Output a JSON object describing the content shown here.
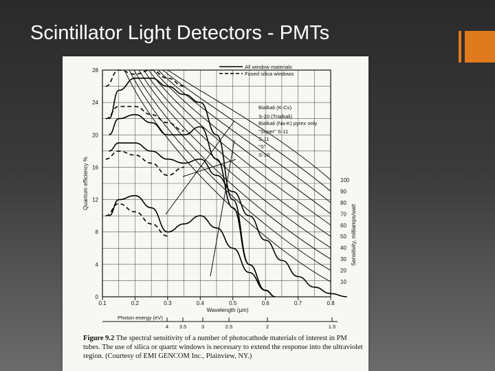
{
  "slide": {
    "title": "Scintillator Light Detectors - PMTs",
    "accent_color": "#e07a1e"
  },
  "chart_data": {
    "type": "line",
    "xlabel": "Wavelength (μm)",
    "ylabel": "Quantum efficiency %",
    "y2label": "Sensitivity, milliamps/watt",
    "xlim": [
      0.1,
      0.8
    ],
    "ylim": [
      0,
      28
    ],
    "grid": true,
    "x_ticks": [
      "0.1",
      "0.2",
      "0.3",
      "0.4",
      "0.5",
      "0.6",
      "0.7",
      "0.8"
    ],
    "y_ticks": [
      "0",
      "4",
      "8",
      "12",
      "16",
      "20",
      "24",
      "28"
    ],
    "sensitivity_labels": [
      "100",
      "90",
      "80",
      "70",
      "60",
      "50",
      "40",
      "30",
      "20",
      "10"
    ],
    "photon_energy_label": "Photon energy (eV)",
    "photon_energy_ticks": [
      "4",
      "3.5",
      "3",
      "2.5",
      "2",
      "1.5"
    ],
    "legend": [
      "All window materials",
      "Fused silica windows",
      "Bialkali (K-Cs)",
      "S-20 (Trialkali)",
      "Bialkali (Na-K) pyrex only",
      "\"Super\" S-11",
      "S-11",
      "\"S\"",
      "S-10"
    ],
    "series": [
      {
        "style": "solid",
        "x": [
          0.12,
          0.15,
          0.2,
          0.25,
          0.3,
          0.35,
          0.4,
          0.45,
          0.5,
          0.55,
          0.6,
          0.63
        ],
        "y": [
          22,
          25.5,
          27,
          27,
          26,
          25,
          24,
          20,
          12,
          4,
          0.8,
          0
        ]
      },
      {
        "style": "solid",
        "x": [
          0.12,
          0.15,
          0.2,
          0.25,
          0.3,
          0.35,
          0.4,
          0.45,
          0.5,
          0.55,
          0.6,
          0.63
        ],
        "y": [
          20,
          22,
          22.5,
          21.5,
          20,
          20,
          21,
          17,
          11,
          4,
          0.8,
          0
        ]
      },
      {
        "style": "solid",
        "x": [
          0.12,
          0.15,
          0.2,
          0.25,
          0.3,
          0.35,
          0.4,
          0.45,
          0.5,
          0.55,
          0.6,
          0.65,
          0.7,
          0.75,
          0.8,
          0.85
        ],
        "y": [
          18,
          19,
          19,
          18,
          17,
          16.5,
          17,
          15,
          13,
          10,
          7,
          4.5,
          2.5,
          1.2,
          0.4,
          0
        ]
      },
      {
        "style": "solid",
        "x": [
          0.12,
          0.15,
          0.2,
          0.25,
          0.3,
          0.35,
          0.4,
          0.45,
          0.5,
          0.55,
          0.6,
          0.63
        ],
        "y": [
          10,
          12,
          12.5,
          11,
          8,
          9,
          10,
          8.5,
          6,
          3,
          0.8,
          0
        ]
      },
      {
        "style": "dashed",
        "x": [
          0.11,
          0.15,
          0.2,
          0.25,
          0.3,
          0.35
        ],
        "y": [
          26,
          28,
          27.5,
          28,
          27,
          26
        ]
      },
      {
        "style": "dashed",
        "x": [
          0.11,
          0.15,
          0.2,
          0.25,
          0.3,
          0.35
        ],
        "y": [
          22,
          23.5,
          23.5,
          22.5,
          21.5,
          20.5
        ]
      },
      {
        "style": "dashed",
        "x": [
          0.11,
          0.15,
          0.2,
          0.25,
          0.3,
          0.35
        ],
        "y": [
          17,
          18,
          17.5,
          16.5,
          15,
          16
        ]
      },
      {
        "style": "dashed",
        "x": [
          0.11,
          0.15,
          0.2,
          0.25,
          0.3
        ],
        "y": [
          10,
          11.5,
          10.5,
          9,
          7.5
        ]
      }
    ]
  },
  "caption": {
    "label": "Figure 9.2",
    "text": "The spectral sensitivity of a number of photocathode materials of interest in PM tubes. The use of silica or quartz windows is necessary to extend the response into the ultraviolet region. (Courtesy of EMI GENCOM Inc., Plainview, NY.)"
  }
}
